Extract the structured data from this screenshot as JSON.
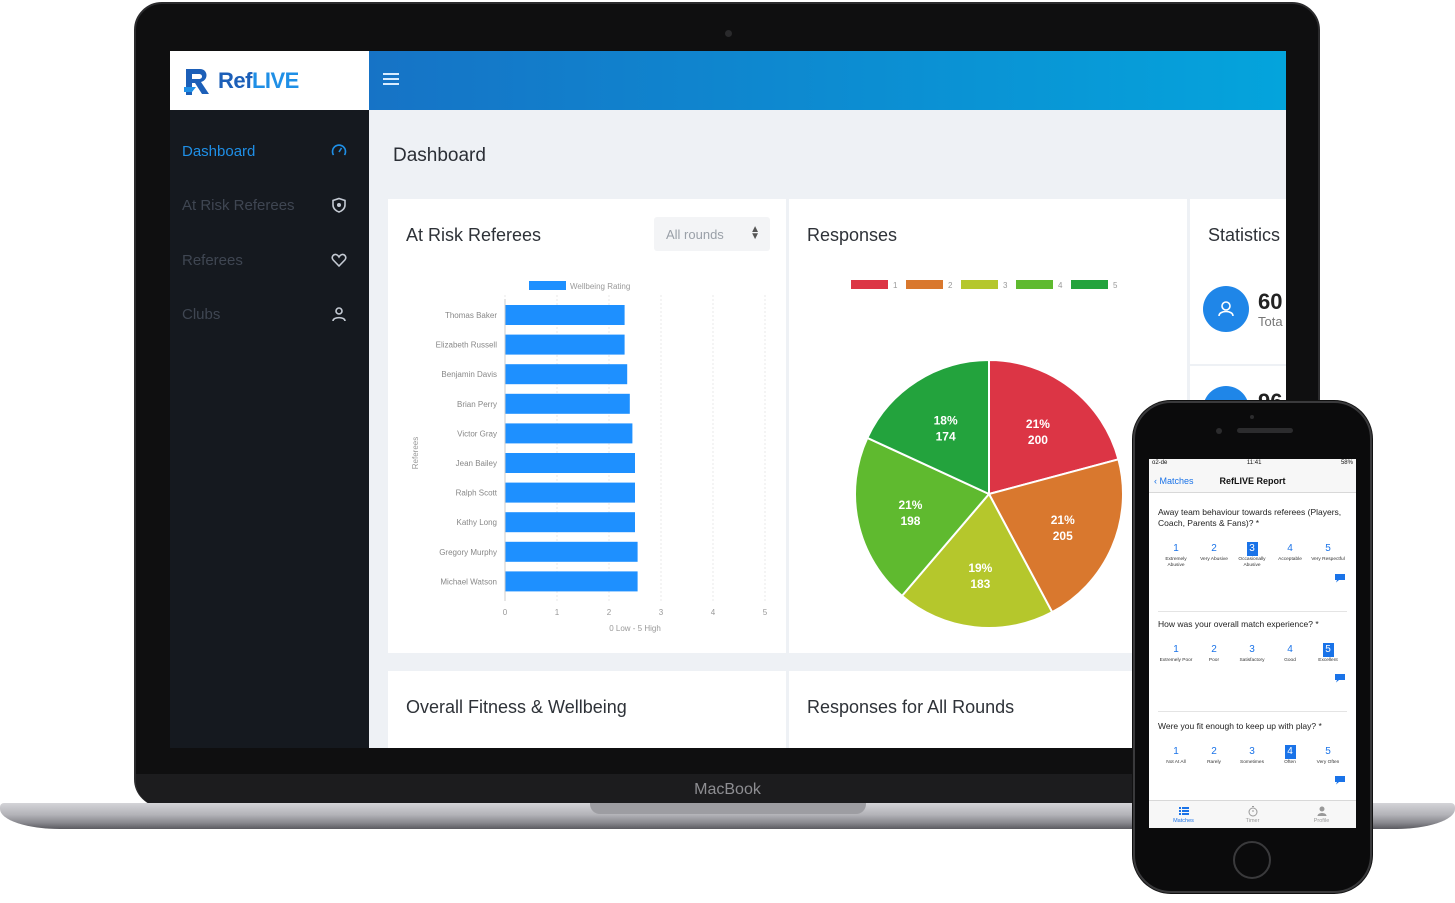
{
  "device_label": "MacBook",
  "app": {
    "logo_prefix": "Ref",
    "logo_suffix": "LIVE",
    "sidebar": {
      "items": [
        {
          "label": "Dashboard",
          "icon": "dashboard-gauge-icon",
          "active": true
        },
        {
          "label": "At Risk Referees",
          "icon": "shield-icon",
          "active": false
        },
        {
          "label": "Referees",
          "icon": "heart-icon",
          "active": false
        },
        {
          "label": "Clubs",
          "icon": "user-group-icon",
          "active": false
        }
      ]
    },
    "page_title": "Dashboard",
    "cards": {
      "at_risk": {
        "title": "At Risk Referees",
        "select_value": "All rounds"
      },
      "responses": {
        "title": "Responses"
      },
      "statistics": {
        "title": "Statistics",
        "stat1_value": "60",
        "stat1_label": "Tota",
        "stat2_value": "96"
      },
      "fitness": {
        "title": "Overall Fitness & Wellbeing"
      },
      "responses_all": {
        "title": "Responses for All Rounds"
      }
    },
    "colors": {
      "accent": "#1f8fe6",
      "sidebar": "#15191f",
      "bar": "#1e90ff"
    }
  },
  "chart_data": [
    {
      "type": "bar",
      "orientation": "horizontal",
      "categories": [
        "Thomas Baker",
        "Elizabeth Russell",
        "Benjamin Davis",
        "Brian Perry",
        "Victor Gray",
        "Jean Bailey",
        "Ralph Scott",
        "Kathy Long",
        "Gregory Murphy",
        "Michael Watson"
      ],
      "series": [
        {
          "name": "Wellbeing Rating",
          "values": [
            2.3,
            2.3,
            2.35,
            2.4,
            2.45,
            2.5,
            2.5,
            2.5,
            2.55,
            2.55
          ]
        }
      ],
      "xlabel": "0 Low - 5 High",
      "ylabel": "Referees",
      "xlim": [
        0,
        5
      ],
      "xticks": [
        "0",
        "1",
        "2",
        "3",
        "4",
        "5"
      ],
      "grid": true,
      "legend": "top",
      "color": "#1e90ff"
    },
    {
      "type": "pie",
      "legend": "top",
      "slices": [
        {
          "label": "1",
          "percent": "21%",
          "value": 200,
          "color": "#dc3545"
        },
        {
          "label": "2",
          "percent": "21%",
          "value": 205,
          "color": "#d9782e"
        },
        {
          "label": "3",
          "percent": "19%",
          "value": 183,
          "color": "#b5c72c"
        },
        {
          "label": "4",
          "percent": "21%",
          "value": 198,
          "color": "#5fba2f"
        },
        {
          "label": "5",
          "percent": "18%",
          "value": 174,
          "color": "#23a33d"
        }
      ]
    }
  ],
  "phone": {
    "status_carrier": "o2-de",
    "status_time": "11:41",
    "status_battery": "58%",
    "back_label": "Matches",
    "title": "RefLIVE Report",
    "questions": [
      {
        "text": "Away team behaviour towards referees (Players, Coach, Parents & Fans)? *",
        "options": [
          {
            "n": "1",
            "label": "Extremely Abusive"
          },
          {
            "n": "2",
            "label": "Very Abusive"
          },
          {
            "n": "3",
            "label": "Occasionally Abusive"
          },
          {
            "n": "4",
            "label": "Acceptable"
          },
          {
            "n": "5",
            "label": "Very Respectful"
          }
        ],
        "selected": 2
      },
      {
        "text": "How was your overall match experience? *",
        "options": [
          {
            "n": "1",
            "label": "Extremely Poor"
          },
          {
            "n": "2",
            "label": "Poor"
          },
          {
            "n": "3",
            "label": "Satisfactory"
          },
          {
            "n": "4",
            "label": "Good"
          },
          {
            "n": "5",
            "label": "Excellent"
          }
        ],
        "selected": 4
      },
      {
        "text": "Were you fit enough to keep up with play? *",
        "options": [
          {
            "n": "1",
            "label": "Not At All"
          },
          {
            "n": "2",
            "label": "Rarely"
          },
          {
            "n": "3",
            "label": "Sometimes"
          },
          {
            "n": "4",
            "label": "Often"
          },
          {
            "n": "5",
            "label": "Very Often"
          }
        ],
        "selected": 3
      }
    ],
    "tabs": [
      {
        "label": "Matches",
        "icon": "list-icon",
        "active": true
      },
      {
        "label": "Timer",
        "icon": "stopwatch-icon",
        "active": false
      },
      {
        "label": "Profile",
        "icon": "profile-icon",
        "active": false
      }
    ]
  }
}
